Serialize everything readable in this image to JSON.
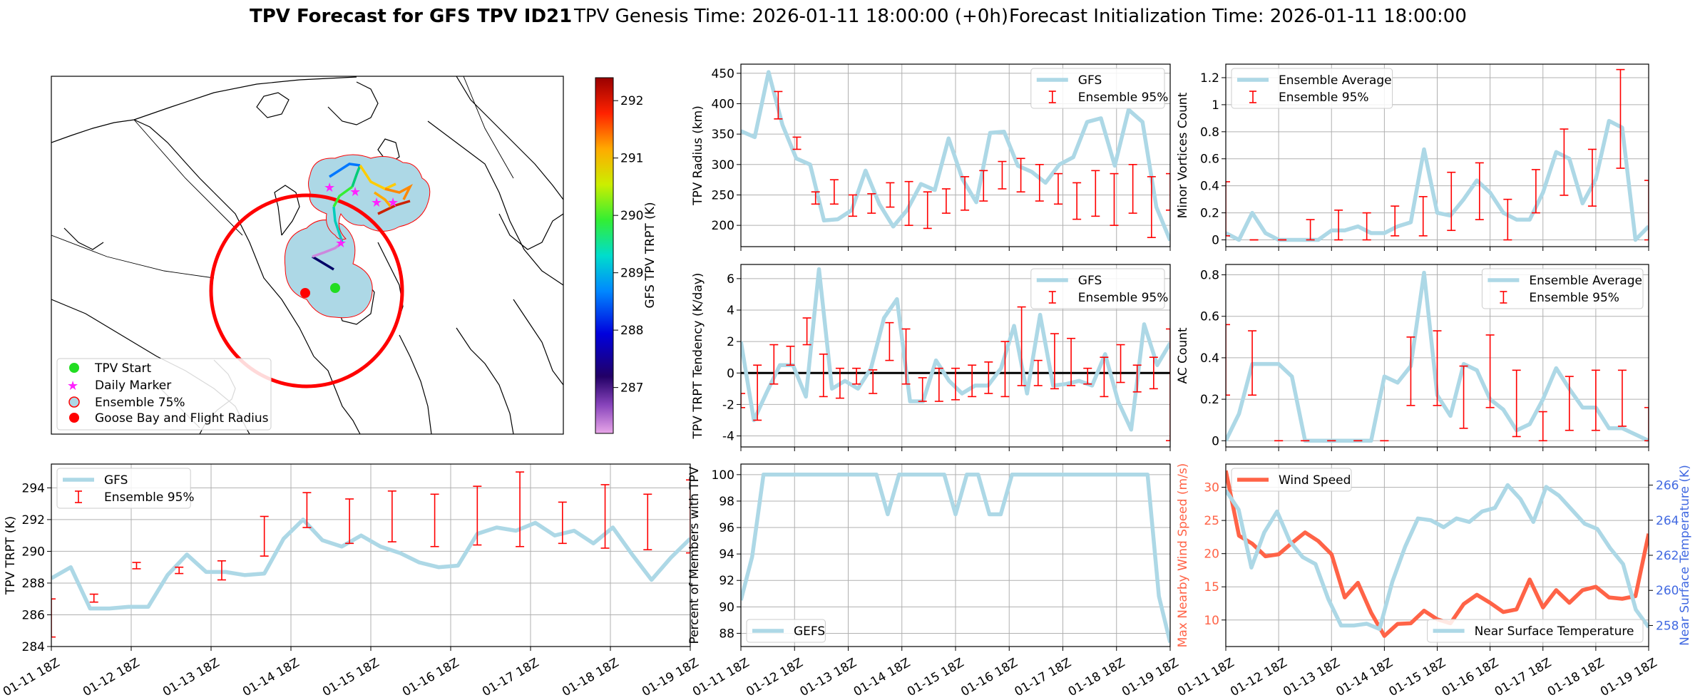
{
  "title": {
    "bold": "TPV Forecast for GFS TPV ID21",
    "genesis": "TPV Genesis Time: 2026-01-11 18:00:00 (+0h)",
    "init": "Forecast Initialization Time: 2026-01-11 18:00:00"
  },
  "colors": {
    "line": "#add8e6",
    "err": "#ff0000",
    "wind": "#ff6347",
    "temp": "#4169e1",
    "grid": "#b0b0b0",
    "zero": "#000000"
  },
  "date_ticks": [
    "01-11 18Z",
    "01-12 18Z",
    "01-13 18Z",
    "01-14 18Z",
    "01-15 18Z",
    "01-16 18Z",
    "01-17 18Z",
    "01-18 18Z",
    "01-19 18Z"
  ],
  "map": {
    "colorbar": {
      "label": "GFS TPV TRPT (K)",
      "ticks": [
        287,
        288,
        289,
        290,
        291,
        292
      ],
      "range": [
        286.2,
        292.4
      ]
    },
    "legend": [
      "TPV Start",
      "Daily Marker",
      "Ensemble 75%",
      "Goose Bay and Flight Radius"
    ],
    "legend_colors": [
      "#22dd22",
      "#ff22ff",
      "#add8e6",
      "#ff0000"
    ]
  },
  "chart_data": [
    {
      "id": "radius",
      "type": "line",
      "ylabel": "TPV Radius (km)",
      "ylim": [
        165,
        465
      ],
      "yticks": [
        200,
        250,
        300,
        350,
        400,
        450
      ],
      "grid": true,
      "legend": [
        "GFS",
        "Ensemble 95%"
      ],
      "legend_position": "upper-right",
      "series": [
        {
          "name": "GFS",
          "values": [
            355,
            345,
            452,
            365,
            310,
            300,
            208,
            210,
            225,
            290,
            235,
            198,
            225,
            268,
            258,
            343,
            276,
            238,
            352,
            354,
            298,
            288,
            270,
            300,
            312,
            370,
            376,
            298,
            390,
            370,
            230,
            175
          ]
        }
      ],
      "error_bars": [
        [
          null,
          null
        ],
        [
          null,
          null
        ],
        [
          375,
          420
        ],
        [
          325,
          345
        ],
        [
          235,
          255
        ],
        [
          235,
          275
        ],
        [
          215,
          250
        ],
        [
          220,
          252
        ],
        [
          230,
          270
        ],
        [
          200,
          272
        ],
        [
          195,
          255
        ],
        [
          220,
          260
        ],
        [
          225,
          280
        ],
        [
          240,
          290
        ],
        [
          260,
          305
        ],
        [
          255,
          310
        ],
        [
          240,
          300
        ],
        [
          235,
          285
        ],
        [
          210,
          270
        ],
        [
          215,
          290
        ],
        [
          200,
          285
        ],
        [
          220,
          300
        ],
        [
          180,
          280
        ],
        [
          225,
          285
        ]
      ]
    },
    {
      "id": "minor",
      "type": "line",
      "ylabel": "Minor Vortices Count",
      "ylim": [
        -0.05,
        1.3
      ],
      "yticks": [
        0.0,
        0.2,
        0.4,
        0.6,
        0.8,
        1.0,
        1.2
      ],
      "grid": true,
      "legend": [
        "Ensemble Average",
        "Ensemble 95%"
      ],
      "legend_position": "upper-left",
      "series": [
        {
          "name": "Ensemble Average",
          "values": [
            0.05,
            0.0,
            0.2,
            0.05,
            0.0,
            0.0,
            0.0,
            0.0,
            0.07,
            0.07,
            0.1,
            0.05,
            0.05,
            0.1,
            0.13,
            0.67,
            0.2,
            0.18,
            0.3,
            0.44,
            0.35,
            0.2,
            0.15,
            0.15,
            0.35,
            0.65,
            0.6,
            0.27,
            0.45,
            0.88,
            0.83,
            0.0,
            0.1
          ]
        }
      ],
      "error_bars": [
        [
          0.03,
          0.43
        ],
        [
          0.0,
          0.0
        ],
        [
          0.0,
          0.0
        ],
        [
          0.0,
          0.15
        ],
        [
          0.0,
          0.22
        ],
        [
          0.0,
          0.2
        ],
        [
          0.03,
          0.25
        ],
        [
          0.03,
          0.32
        ],
        [
          0.07,
          0.5
        ],
        [
          0.15,
          0.57
        ],
        [
          0.0,
          0.3
        ],
        [
          0.2,
          0.52
        ],
        [
          0.33,
          0.82
        ],
        [
          0.25,
          0.67
        ],
        [
          0.53,
          1.26
        ],
        [
          0.0,
          0.44
        ]
      ]
    },
    {
      "id": "tendency",
      "type": "line",
      "ylabel": "TPV TRPT Tendency (K/day)",
      "ylim": [
        -4.7,
        6.9
      ],
      "yticks": [
        -4,
        -2,
        0,
        2,
        4,
        6
      ],
      "grid": true,
      "legend": [
        "GFS",
        "Ensemble 95%"
      ],
      "legend_position": "upper-right",
      "series": [
        {
          "name": "GFS",
          "values": [
            2.0,
            -3.0,
            -1.2,
            0.5,
            0.5,
            -1.5,
            6.6,
            -1.0,
            -0.5,
            -1.0,
            0.3,
            3.5,
            4.7,
            -1.8,
            -1.8,
            0.8,
            -0.5,
            -1.3,
            -0.8,
            -0.8,
            0.3,
            3.0,
            -1.3,
            3.7,
            -0.8,
            -0.7,
            -0.5,
            -0.8,
            1.2,
            -1.8,
            -3.6,
            3.1,
            0.5,
            1.9
          ]
        }
      ],
      "error_bars": [
        [
          -2.2,
          -1.3
        ],
        [
          -3.0,
          0.5
        ],
        [
          -0.7,
          1.8
        ],
        [
          0.5,
          1.7
        ],
        [
          1.8,
          3.5
        ],
        [
          -1.5,
          1.2
        ],
        [
          -1.6,
          0.3
        ],
        [
          -0.7,
          0.3
        ],
        [
          -1.3,
          0.2
        ],
        [
          0.8,
          3.2
        ],
        [
          -0.7,
          2.8
        ],
        [
          -1.8,
          -0.3
        ],
        [
          -1.8,
          0.3
        ],
        [
          -1.7,
          0.3
        ],
        [
          -1.5,
          0.5
        ],
        [
          -1.3,
          0.7
        ],
        [
          -1.5,
          2.0
        ],
        [
          -0.8,
          4.2
        ],
        [
          -0.8,
          0.8
        ],
        [
          -1.0,
          2.5
        ],
        [
          -0.8,
          2.2
        ],
        [
          -0.7,
          0.3
        ],
        [
          -1.5,
          1.0
        ],
        [
          -0.6,
          1.8
        ],
        [
          -1.2,
          0.5
        ],
        [
          -1.0,
          1.0
        ],
        [
          -4.3,
          2.8
        ]
      ]
    },
    {
      "id": "ac",
      "type": "line",
      "ylabel": "AC Count",
      "ylim": [
        -0.03,
        0.85
      ],
      "yticks": [
        0.0,
        0.2,
        0.4,
        0.6,
        0.8
      ],
      "grid": true,
      "legend": [
        "Ensemble Average",
        "Ensemble 95%"
      ],
      "legend_position": "upper-right",
      "series": [
        {
          "name": "Ensemble Average",
          "values": [
            0.0,
            0.13,
            0.37,
            0.37,
            0.37,
            0.31,
            0.0,
            0.0,
            0.0,
            0.0,
            0.0,
            0.0,
            0.31,
            0.28,
            0.36,
            0.81,
            0.22,
            0.12,
            0.37,
            0.34,
            0.2,
            0.15,
            0.05,
            0.08,
            0.2,
            0.35,
            0.25,
            0.16,
            0.16,
            0.06,
            0.06,
            0.03,
            0.0
          ]
        }
      ],
      "error_bars": [
        [
          0.22,
          0.56
        ],
        [
          0.22,
          0.53
        ],
        [
          0.0,
          0.0
        ],
        [
          0.0,
          0.0
        ],
        [
          0.0,
          0.0
        ],
        [
          0.0,
          0.0
        ],
        [
          0.0,
          0.0
        ],
        [
          0.17,
          0.5
        ],
        [
          0.17,
          0.53
        ],
        [
          0.06,
          0.36
        ],
        [
          0.16,
          0.51
        ],
        [
          0.02,
          0.34
        ],
        [
          0.0,
          0.14
        ],
        [
          0.05,
          0.31
        ],
        [
          0.05,
          0.34
        ],
        [
          0.07,
          0.34
        ],
        [
          0.0,
          0.16
        ]
      ]
    },
    {
      "id": "trpt",
      "type": "line",
      "ylabel": "TPV TRPT (K)",
      "ylim": [
        284.0,
        295.5
      ],
      "yticks": [
        284,
        286,
        288,
        290,
        292,
        294
      ],
      "xtick_labels": true,
      "grid": true,
      "legend": [
        "GFS",
        "Ensemble 95%"
      ],
      "legend_position": "upper-left",
      "series": [
        {
          "name": "GFS",
          "values": [
            288.3,
            289.0,
            286.4,
            286.4,
            286.5,
            286.5,
            288.5,
            289.8,
            288.7,
            288.7,
            288.5,
            288.6,
            290.8,
            292.0,
            290.7,
            290.3,
            291.0,
            290.3,
            289.9,
            289.3,
            289.0,
            289.1,
            291.1,
            291.5,
            291.3,
            291.8,
            291.0,
            291.3,
            290.5,
            291.5,
            289.8,
            288.2,
            289.6,
            290.8
          ]
        }
      ],
      "error_bars": [
        [
          284.6,
          287.0
        ],
        [
          286.8,
          287.3
        ],
        [
          288.9,
          289.3
        ],
        [
          288.6,
          289.0
        ],
        [
          288.2,
          289.4
        ],
        [
          289.7,
          292.2
        ],
        [
          291.5,
          293.7
        ],
        [
          290.5,
          293.3
        ],
        [
          290.6,
          293.8
        ],
        [
          290.3,
          293.6
        ],
        [
          290.4,
          294.1
        ],
        [
          290.3,
          295.0
        ],
        [
          290.5,
          293.1
        ],
        [
          290.2,
          294.2
        ],
        [
          290.1,
          293.6
        ],
        [
          289.9,
          294.5
        ]
      ]
    },
    {
      "id": "percent",
      "type": "line",
      "ylabel": "Percent of Members with TPV",
      "ylim": [
        87.0,
        100.8
      ],
      "yticks": [
        88,
        90,
        92,
        94,
        96,
        98,
        100
      ],
      "xtick_labels": true,
      "grid": true,
      "legend": [
        "GEFS"
      ],
      "legend_position": "lower-left",
      "series": [
        {
          "name": "GEFS",
          "values": [
            90.5,
            93.8,
            100,
            100,
            100,
            100,
            100,
            100,
            100,
            100,
            100,
            100,
            100,
            97,
            100,
            100,
            100,
            100,
            100,
            97,
            100,
            100,
            97,
            97,
            100,
            100,
            100,
            100,
            100,
            100,
            100,
            100,
            100,
            100,
            100,
            100,
            100,
            90.8,
            87.3
          ]
        }
      ]
    },
    {
      "id": "wind_temp",
      "type": "line",
      "ylabel": "Max Nearby Wind Speed (m/s)",
      "ylabel_right": "Near Surface Temperature (K)",
      "ylim": [
        6.0,
        33.5
      ],
      "ylim_right": [
        256.8,
        267.2
      ],
      "yticks": [
        10,
        15,
        20,
        25,
        30
      ],
      "yticks_right": [
        258,
        260,
        262,
        264,
        266
      ],
      "xtick_labels": true,
      "grid": true,
      "legend": [
        "Wind Speed",
        "Near Surface Temperature"
      ],
      "legend_positions": [
        "upper-left",
        "lower-right"
      ],
      "series": [
        {
          "name": "Wind Speed",
          "axis": "left",
          "values": [
            32.5,
            22.7,
            21.5,
            19.6,
            19.9,
            21.6,
            23.2,
            21.9,
            19.9,
            13.4,
            15.6,
            11.1,
            7.6,
            9.4,
            9.5,
            11.4,
            10.1,
            9.5,
            12.4,
            13.8,
            12.6,
            11.2,
            11.6,
            16.1,
            11.9,
            14.5,
            12.6,
            14.5,
            15.0,
            13.4,
            13.2,
            13.6,
            23.0
          ]
        },
        {
          "name": "Near Surface Temperature",
          "axis": "right",
          "values": [
            265.7,
            264.6,
            261.3,
            263.3,
            264.5,
            262.8,
            261.9,
            261.5,
            259.5,
            258.0,
            258.0,
            258.1,
            257.8,
            260.5,
            262.5,
            264.1,
            264.0,
            263.6,
            264.1,
            263.9,
            264.5,
            264.7,
            266.0,
            265.2,
            263.9,
            265.9,
            265.4,
            264.6,
            263.8,
            263.5,
            262.4,
            261.5,
            258.9,
            257.9
          ]
        }
      ]
    }
  ]
}
